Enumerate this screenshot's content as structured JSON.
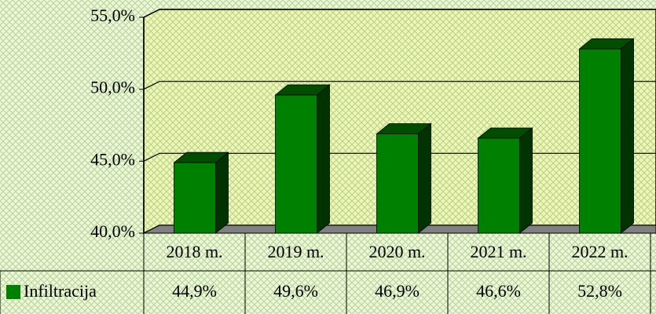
{
  "chart_data": {
    "type": "bar",
    "categories": [
      "2018 m.",
      "2019 m.",
      "2020 m.",
      "2021 m.",
      "2022 m."
    ],
    "series": [
      {
        "name": "Infiltracija",
        "color": "#008000",
        "values": [
          44.9,
          49.6,
          46.9,
          46.6,
          52.8
        ],
        "value_labels": [
          "44,9%",
          "49,6%",
          "46,9%",
          "46,6%",
          "52,8%"
        ]
      }
    ],
    "ylim": [
      40,
      55
    ],
    "yticks": [
      {
        "value": 40,
        "label": "40,0%"
      },
      {
        "value": 45,
        "label": "45,0%"
      },
      {
        "value": 50,
        "label": "50,0%"
      },
      {
        "value": 55,
        "label": "55,0%"
      }
    ],
    "grid": true
  }
}
